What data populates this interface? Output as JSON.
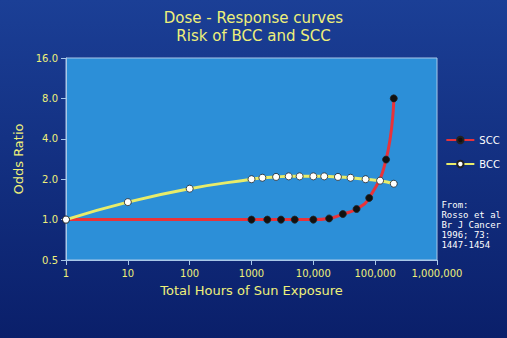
{
  "chart_data": {
    "type": "line",
    "title": "Dose - Response curves\nRisk of BCC and SCC",
    "x_label": "Total Hours of Sun Exposure",
    "y_label": "Odds Ratio",
    "annotation": "From:\nRosso et al\nBr J Cancer\n1996; 73:\n1447-1454",
    "log": true,
    "grid": false,
    "legend": "right",
    "xlim": [
      1,
      1000000
    ],
    "xticks": [
      1,
      10,
      100,
      1000,
      {
        "value": 10000,
        "label": "10,000"
      },
      {
        "value": 100000,
        "label": "100,000"
      },
      {
        "value": 1000000,
        "label": "1,000,000"
      }
    ],
    "ylim": [
      0.5,
      16
    ],
    "yticks": [
      {
        "value": 0.5,
        "label": "0.5"
      },
      {
        "value": 1,
        "label": "1.0"
      },
      {
        "value": 2,
        "label": "2.0"
      },
      {
        "value": 4,
        "label": "4.0"
      },
      {
        "value": 8,
        "label": "8.0"
      },
      {
        "value": 16,
        "label": "16.0"
      }
    ],
    "series": [
      {
        "name": "SCC",
        "color": "#e8333a",
        "marker": "circle",
        "x": [
          1,
          1000,
          1800,
          3000,
          5000,
          10000,
          18000,
          30000,
          50000,
          80000,
          150000,
          200000
        ],
        "values": [
          1.0,
          1.0,
          1.0,
          1.0,
          1.0,
          1.0,
          1.02,
          1.1,
          1.2,
          1.45,
          2.8,
          8.0
        ]
      },
      {
        "name": "BCC",
        "color": "#e8ec6a",
        "marker": "circle",
        "x": [
          1,
          10,
          100,
          1000,
          1500,
          2500,
          4000,
          6000,
          10000,
          15000,
          25000,
          40000,
          70000,
          120000,
          200000
        ],
        "values": [
          1.0,
          1.35,
          1.7,
          2.0,
          2.05,
          2.08,
          2.1,
          2.1,
          2.1,
          2.1,
          2.08,
          2.05,
          2.0,
          1.95,
          1.85
        ]
      }
    ]
  }
}
